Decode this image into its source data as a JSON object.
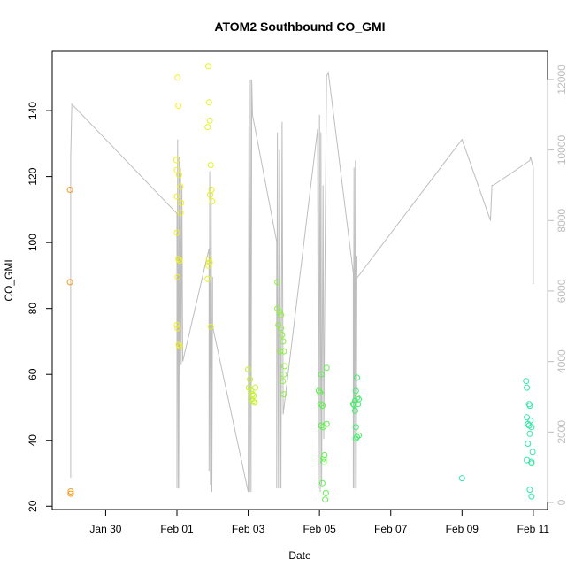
{
  "chart_data": {
    "type": "scatter",
    "title": "ATOM2 Southbound CO_GMI",
    "xlabel": "Date",
    "ylabel": "CO_GMI",
    "x_unit": "days (0 = Jan 30 00:00)",
    "xlim": [
      -1.5,
      12.4
    ],
    "ylim": [
      19,
      158
    ],
    "x_ticks": [
      {
        "value": 0,
        "label": "Jan 30"
      },
      {
        "value": 2,
        "label": "Feb 01"
      },
      {
        "value": 4,
        "label": "Feb 03"
      },
      {
        "value": 6,
        "label": "Feb 05"
      },
      {
        "value": 8,
        "label": "Feb 07"
      },
      {
        "value": 10,
        "label": "Feb 09"
      },
      {
        "value": 12,
        "label": "Feb 11"
      }
    ],
    "y_ticks": [
      20,
      40,
      60,
      80,
      100,
      120,
      140
    ],
    "y2lim": [
      -200,
      12800
    ],
    "y2_ticks": [
      0,
      2000,
      4000,
      6000,
      8000,
      10000,
      12000
    ],
    "grid": false,
    "legend": "none",
    "colors": {
      "axis": "#000000",
      "altitude_line": "#bdbdbd",
      "right_axis": "#bdbdbd"
    },
    "flights": [
      {
        "color": "#f59a1f",
        "points": [
          [
            -1.0,
            116
          ],
          [
            -1.0,
            88
          ],
          [
            -0.98,
            24.5
          ],
          [
            -0.98,
            23.8
          ]
        ]
      },
      {
        "color": "#f3f11a",
        "points": [
          [
            2.02,
            150
          ],
          [
            2.04,
            141.5
          ],
          [
            1.98,
            125
          ],
          [
            2.0,
            122
          ],
          [
            2.06,
            120.5
          ],
          [
            2.1,
            117
          ],
          [
            2.0,
            114
          ],
          [
            2.12,
            112
          ],
          [
            2.1,
            109
          ],
          [
            2.0,
            103
          ],
          [
            2.04,
            95
          ],
          [
            2.08,
            94.5
          ],
          [
            2.02,
            89.5
          ],
          [
            2.0,
            75
          ],
          [
            2.02,
            74
          ],
          [
            2.05,
            69
          ],
          [
            2.08,
            68.5
          ]
        ]
      },
      {
        "color": "#e7f21e",
        "points": [
          [
            2.88,
            153.5
          ],
          [
            2.9,
            142.5
          ],
          [
            2.92,
            137
          ],
          [
            2.86,
            135
          ],
          [
            2.95,
            123.5
          ],
          [
            2.97,
            116
          ],
          [
            2.93,
            114.5
          ],
          [
            2.99,
            112.5
          ],
          [
            2.9,
            95
          ],
          [
            2.92,
            94
          ],
          [
            2.88,
            93
          ],
          [
            2.86,
            89
          ],
          [
            2.95,
            74.5
          ]
        ]
      },
      {
        "color": "#c5f22a",
        "points": [
          [
            4.0,
            61.5
          ],
          [
            4.05,
            58.5
          ],
          [
            4.02,
            56
          ],
          [
            4.08,
            55
          ],
          [
            4.12,
            54
          ],
          [
            4.15,
            53.5
          ],
          [
            4.1,
            52.5
          ],
          [
            4.2,
            56
          ],
          [
            4.18,
            51.5
          ],
          [
            4.14,
            51.8
          ]
        ]
      },
      {
        "color": "#8cf23c",
        "points": [
          [
            4.82,
            88
          ],
          [
            4.82,
            80
          ],
          [
            4.88,
            79
          ],
          [
            4.92,
            78
          ],
          [
            4.85,
            75
          ],
          [
            4.92,
            74
          ],
          [
            4.95,
            72
          ],
          [
            4.98,
            70
          ],
          [
            4.9,
            67
          ],
          [
            5.0,
            67
          ],
          [
            5.02,
            62.5
          ],
          [
            5.0,
            60
          ],
          [
            4.97,
            58
          ],
          [
            5.0,
            54
          ]
        ]
      },
      {
        "color": "#5df24a",
        "points": [
          [
            6.05,
            60
          ],
          [
            5.98,
            55
          ],
          [
            6.02,
            54.5
          ],
          [
            6.04,
            51
          ],
          [
            6.08,
            50.5
          ],
          [
            6.1,
            44
          ],
          [
            6.05,
            44.5
          ],
          [
            6.2,
            45
          ],
          [
            6.2,
            62
          ],
          [
            6.14,
            35.5
          ],
          [
            6.12,
            34.5
          ],
          [
            6.12,
            33.5
          ],
          [
            6.08,
            27
          ],
          [
            6.18,
            24
          ],
          [
            6.16,
            22
          ]
        ]
      },
      {
        "color": "#3fef6a",
        "points": [
          [
            6.95,
            51
          ],
          [
            6.97,
            50.8
          ],
          [
            7.0,
            49
          ],
          [
            7.05,
            59
          ],
          [
            7.02,
            55
          ],
          [
            7.06,
            53
          ],
          [
            7.1,
            52.5
          ],
          [
            7.0,
            52
          ],
          [
            7.08,
            51
          ],
          [
            7.02,
            44
          ],
          [
            7.05,
            41
          ],
          [
            7.1,
            41.5
          ],
          [
            7.02,
            40.5
          ]
        ]
      },
      {
        "color": "#36e6b0",
        "points": [
          [
            10.0,
            28.5
          ]
        ]
      },
      {
        "color": "#33e6a6",
        "points": [
          [
            11.8,
            58
          ],
          [
            11.82,
            56
          ],
          [
            11.88,
            51
          ],
          [
            11.9,
            50.5
          ],
          [
            11.82,
            47
          ],
          [
            11.92,
            46
          ],
          [
            11.85,
            45
          ],
          [
            11.88,
            44.5
          ],
          [
            11.95,
            44
          ],
          [
            11.9,
            42
          ],
          [
            11.85,
            39
          ],
          [
            11.82,
            34
          ],
          [
            11.95,
            33.5
          ],
          [
            11.95,
            33
          ],
          [
            11.98,
            36.5
          ],
          [
            11.9,
            25
          ],
          [
            11.95,
            23
          ]
        ]
      }
    ],
    "altitude_line": [
      [
        -0.98,
        700
      ],
      [
        -0.98,
        9800
      ],
      [
        -0.95,
        11300
      ],
      [
        2.0,
        8200
      ],
      [
        2.0,
        400
      ],
      [
        2.02,
        10300
      ],
      [
        2.04,
        400
      ],
      [
        2.06,
        9800
      ],
      [
        2.08,
        400
      ],
      [
        2.1,
        9500
      ],
      [
        2.12,
        3900
      ],
      [
        2.14,
        9000
      ],
      [
        2.16,
        4000
      ],
      [
        2.9,
        7200
      ],
      [
        2.9,
        900
      ],
      [
        2.92,
        9400
      ],
      [
        2.94,
        500
      ],
      [
        2.96,
        8800
      ],
      [
        2.98,
        300
      ],
      [
        3.0,
        6400
      ],
      [
        3.0,
        5000
      ],
      [
        4.0,
        300
      ],
      [
        4.02,
        10700
      ],
      [
        4.04,
        300
      ],
      [
        4.06,
        12000
      ],
      [
        4.08,
        300
      ],
      [
        4.1,
        12000
      ],
      [
        4.12,
        11000
      ],
      [
        4.8,
        7400
      ],
      [
        4.8,
        400
      ],
      [
        4.82,
        10500
      ],
      [
        4.85,
        400
      ],
      [
        4.88,
        10000
      ],
      [
        4.92,
        400
      ],
      [
        4.95,
        10800
      ],
      [
        4.98,
        2500
      ],
      [
        5.95,
        10600
      ],
      [
        5.97,
        400
      ],
      [
        6.0,
        11000
      ],
      [
        6.02,
        300
      ],
      [
        6.04,
        10500
      ],
      [
        6.06,
        500
      ],
      [
        6.1,
        9000
      ],
      [
        6.12,
        1800
      ],
      [
        6.16,
        7500
      ],
      [
        6.2,
        12100
      ],
      [
        6.25,
        12200
      ],
      [
        6.95,
        6500
      ],
      [
        6.95,
        400
      ],
      [
        6.97,
        9500
      ],
      [
        6.99,
        400
      ],
      [
        7.01,
        9700
      ],
      [
        7.03,
        400
      ],
      [
        7.05,
        7000
      ],
      [
        7.0,
        6300
      ],
      [
        10.0,
        10300
      ],
      [
        10.8,
        8000
      ],
      [
        10.82,
        8500
      ],
      [
        10.84,
        9000
      ],
      [
        10.86,
        9000
      ],
      [
        10.88,
        9000
      ],
      [
        11.9,
        9700
      ],
      [
        11.92,
        9800
      ],
      [
        12.0,
        9500
      ],
      [
        12.0,
        6200
      ]
    ]
  }
}
